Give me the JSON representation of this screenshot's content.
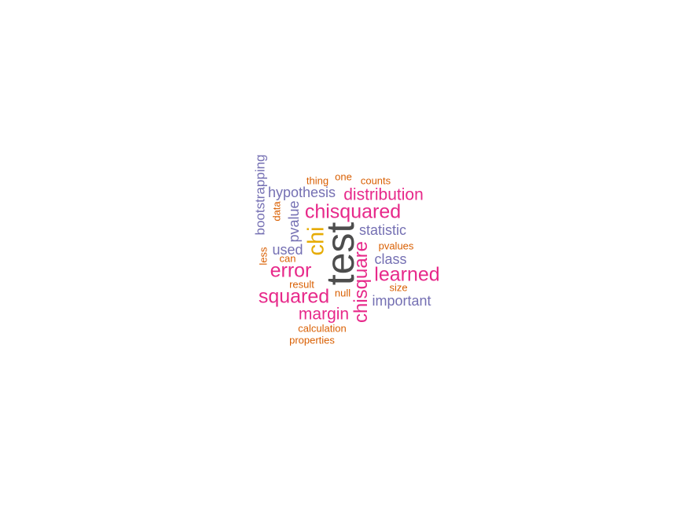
{
  "colors": {
    "dark": "#4d4d4d",
    "magenta": "#e7298a",
    "purple": "#7570b3",
    "orange": "#d95f02",
    "gold": "#e6ab02"
  },
  "words": [
    {
      "id": "test",
      "text": "test",
      "color": "#4d4d4d",
      "vertical": true
    },
    {
      "id": "chisquare",
      "text": "chisquare",
      "color": "#e7298a",
      "vertical": true
    },
    {
      "id": "chi",
      "text": "chi",
      "color": "#e6ab02",
      "vertical": true
    },
    {
      "id": "bootstrapping",
      "text": "bootstrapping",
      "color": "#7570b3",
      "vertical": true
    },
    {
      "id": "pvalue",
      "text": "pvalue",
      "color": "#7570b3",
      "vertical": true
    },
    {
      "id": "data",
      "text": "data",
      "color": "#d95f02",
      "vertical": true
    },
    {
      "id": "less",
      "text": "less",
      "color": "#d95f02",
      "vertical": true
    },
    {
      "id": "chisquared",
      "text": "chisquared",
      "color": "#e7298a",
      "vertical": false
    },
    {
      "id": "learned",
      "text": "learned",
      "color": "#e7298a",
      "vertical": false
    },
    {
      "id": "error",
      "text": "error",
      "color": "#e7298a",
      "vertical": false
    },
    {
      "id": "squared",
      "text": "squared",
      "color": "#e7298a",
      "vertical": false
    },
    {
      "id": "distribution",
      "text": "distribution",
      "color": "#e7298a",
      "vertical": false
    },
    {
      "id": "margin",
      "text": "margin",
      "color": "#e7298a",
      "vertical": false
    },
    {
      "id": "hypothesis",
      "text": "hypothesis",
      "color": "#7570b3",
      "vertical": false
    },
    {
      "id": "statistic",
      "text": "statistic",
      "color": "#7570b3",
      "vertical": false
    },
    {
      "id": "class",
      "text": "class",
      "color": "#7570b3",
      "vertical": false
    },
    {
      "id": "important",
      "text": "important",
      "color": "#7570b3",
      "vertical": false
    },
    {
      "id": "used",
      "text": "used",
      "color": "#7570b3",
      "vertical": false
    },
    {
      "id": "thing",
      "text": "thing",
      "color": "#d95f02",
      "vertical": false
    },
    {
      "id": "one",
      "text": "one",
      "color": "#d95f02",
      "vertical": false
    },
    {
      "id": "counts",
      "text": "counts",
      "color": "#d95f02",
      "vertical": false
    },
    {
      "id": "pvalues",
      "text": "pvalues",
      "color": "#d95f02",
      "vertical": false
    },
    {
      "id": "can",
      "text": "can",
      "color": "#d95f02",
      "vertical": false
    },
    {
      "id": "result",
      "text": "result",
      "color": "#d95f02",
      "vertical": false
    },
    {
      "id": "null",
      "text": "null",
      "color": "#d95f02",
      "vertical": false
    },
    {
      "id": "size",
      "text": "size",
      "color": "#d95f02",
      "vertical": false
    },
    {
      "id": "calculation",
      "text": "calculation",
      "color": "#d95f02",
      "vertical": false
    },
    {
      "id": "properties",
      "text": "properties",
      "color": "#d95f02",
      "vertical": false
    }
  ]
}
